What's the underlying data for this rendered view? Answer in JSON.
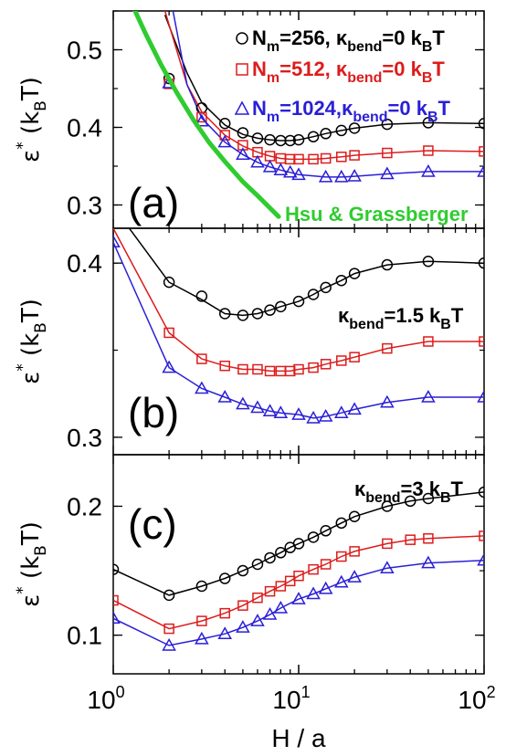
{
  "colors": {
    "black": "#000000",
    "red": "#dd1c1c",
    "blue": "#2a1fd6",
    "green": "#2fcc2f"
  },
  "xaxis": {
    "label": "H / a",
    "ticks": [
      {
        "value": 1,
        "base": "10",
        "exp": "0"
      },
      {
        "value": 10,
        "base": "10",
        "exp": "1"
      },
      {
        "value": 100,
        "base": "10",
        "exp": "2"
      }
    ]
  },
  "chart_data": [
    {
      "type": "line",
      "panel": "(a)",
      "ylabel": "ε* (kBT)",
      "ylabel_parts": {
        "sym": "ε",
        "sup": "*",
        "open": " (k",
        "sub": "B",
        "close": "T)"
      },
      "xscale": "log",
      "xlim": [
        1,
        100
      ],
      "ylim": [
        0.27,
        0.55
      ],
      "yticks": [
        0.3,
        0.4,
        0.5
      ],
      "ytick_labels": [
        "0.3",
        "0.4",
        "0.5"
      ],
      "legend": [
        {
          "series": 0,
          "p1": "N",
          "p1sub": "m",
          "p2": "=256,  ",
          "p3": "κ",
          "p3sub": "bend",
          "p4": "=0 k",
          "p4sub": "B",
          "p5": "T"
        },
        {
          "series": 1,
          "p1": "N",
          "p1sub": "m",
          "p2": "=512,  ",
          "p3": "κ",
          "p3sub": "bend",
          "p4": "=0 k",
          "p4sub": "B",
          "p5": "T"
        },
        {
          "series": 2,
          "p1": "N",
          "p1sub": "m",
          "p2": "=1024,",
          "p3": "κ",
          "p3sub": "bend",
          "p4": "=0 k",
          "p4sub": "B",
          "p5": "T"
        }
      ],
      "annotation": "Hsu & Grassberger",
      "series": [
        {
          "name": "Nm=256, κbend=0 kBT",
          "marker": "circle",
          "color": "#000000",
          "x": [
            2,
            3,
            4,
            5,
            6,
            7,
            8,
            9,
            10,
            12,
            14,
            17,
            20,
            30,
            50,
            100
          ],
          "y": [
            0.463,
            0.425,
            0.405,
            0.393,
            0.386,
            0.384,
            0.383,
            0.383,
            0.384,
            0.388,
            0.392,
            0.396,
            0.399,
            0.404,
            0.406,
            0.405
          ]
        },
        {
          "name": "Nm=512, κbend=0 kBT",
          "marker": "square",
          "color": "#dd1c1c",
          "x": [
            2,
            3,
            4,
            5,
            6,
            7,
            8,
            9,
            10,
            12,
            14,
            17,
            20,
            30,
            50,
            100
          ],
          "y": [
            0.456,
            0.413,
            0.39,
            0.377,
            0.368,
            0.363,
            0.36,
            0.359,
            0.359,
            0.359,
            0.36,
            0.362,
            0.364,
            0.367,
            0.37,
            0.369
          ]
        },
        {
          "name": "Nm=1024, κbend=0 kBT",
          "marker": "triangle",
          "color": "#2a1fd6",
          "x": [
            2,
            3,
            4,
            5,
            6,
            7,
            8,
            9,
            10,
            14,
            17,
            20,
            30,
            50,
            100
          ],
          "y": [
            0.457,
            0.408,
            0.381,
            0.365,
            0.355,
            0.349,
            0.345,
            0.342,
            0.339,
            0.336,
            0.336,
            0.337,
            0.34,
            0.343,
            0.343
          ]
        },
        {
          "name": "Hsu & Grassberger",
          "marker": "none",
          "color": "#2fcc2f",
          "x": [
            1.3,
            1.5,
            1.8,
            2.2,
            2.7,
            3.3,
            4.0,
            5.0,
            6.0,
            7.0,
            7.8
          ],
          "y": [
            0.552,
            0.52,
            0.482,
            0.445,
            0.41,
            0.38,
            0.356,
            0.33,
            0.312,
            0.296,
            0.285
          ]
        }
      ],
      "fits": [
        {
          "color": "#000000",
          "x": [
            1.9,
            2.5,
            3.0,
            4.0,
            5.0,
            6.0,
            7.0,
            8.0,
            9.0,
            10,
            12,
            14,
            17,
            20,
            30,
            50,
            100
          ],
          "y": [
            0.545,
            0.47,
            0.432,
            0.403,
            0.391,
            0.386,
            0.384,
            0.383,
            0.383,
            0.384,
            0.388,
            0.392,
            0.396,
            0.399,
            0.404,
            0.406,
            0.405
          ]
        },
        {
          "color": "#dd1c1c",
          "x": [
            1.9,
            2.5,
            3.0,
            4.0,
            5.0,
            6.0,
            7.0,
            8.0,
            9.0,
            10,
            12,
            14,
            17,
            20,
            30,
            50,
            100
          ],
          "y": [
            0.55,
            0.455,
            0.42,
            0.39,
            0.376,
            0.368,
            0.363,
            0.36,
            0.359,
            0.359,
            0.359,
            0.36,
            0.362,
            0.364,
            0.367,
            0.37,
            0.369
          ]
        },
        {
          "color": "#2a1fd6",
          "x": [
            2.1,
            2.5,
            3.0,
            4.0,
            5.0,
            6.0,
            7.0,
            8.0,
            9.0,
            10,
            14,
            17,
            20,
            30,
            50,
            100
          ],
          "y": [
            0.55,
            0.455,
            0.412,
            0.381,
            0.365,
            0.355,
            0.349,
            0.345,
            0.342,
            0.339,
            0.336,
            0.336,
            0.337,
            0.34,
            0.343,
            0.343
          ]
        }
      ]
    },
    {
      "type": "line",
      "panel": "(b)",
      "ylabel": "ε* (kBT)",
      "ylabel_parts": {
        "sym": "ε",
        "sup": "*",
        "open": " (k",
        "sub": "B",
        "close": "T)"
      },
      "xscale": "log",
      "xlim": [
        1,
        100
      ],
      "ylim": [
        0.29,
        0.42
      ],
      "yticks": [
        0.3,
        0.4
      ],
      "ytick_labels": [
        "0.3",
        "0.4"
      ],
      "text_label": {
        "p1": "κ",
        "p1sub": "bend",
        "p2": "=1.5 k",
        "p2sub": "B",
        "p3": "T"
      },
      "series": [
        {
          "name": "Nm=256, κbend=1.5 kBT",
          "marker": "circle",
          "color": "#000000",
          "x": [
            2,
            3,
            4,
            5,
            6,
            7,
            8,
            10,
            12,
            14,
            17,
            20,
            30,
            50,
            100
          ],
          "y": [
            0.389,
            0.381,
            0.371,
            0.37,
            0.371,
            0.373,
            0.375,
            0.378,
            0.382,
            0.386,
            0.39,
            0.394,
            0.399,
            0.401,
            0.4
          ]
        },
        {
          "name": "Nm=512, κbend=1.5 kBT",
          "marker": "square",
          "color": "#dd1c1c",
          "x": [
            2,
            3,
            4,
            5,
            6,
            7,
            8,
            9,
            10,
            12,
            14,
            17,
            20,
            30,
            50,
            100
          ],
          "y": [
            0.36,
            0.345,
            0.341,
            0.339,
            0.339,
            0.338,
            0.338,
            0.338,
            0.339,
            0.34,
            0.342,
            0.344,
            0.346,
            0.351,
            0.355,
            0.355
          ]
        },
        {
          "name": "Nm=1024, κbend=1.5 kBT",
          "marker": "triangle",
          "color": "#2a1fd6",
          "x": [
            1,
            2,
            3,
            4,
            5,
            6,
            7,
            8,
            10,
            12,
            14,
            17,
            20,
            30,
            50,
            100
          ],
          "y": [
            0.412,
            0.34,
            0.328,
            0.323,
            0.319,
            0.317,
            0.315,
            0.314,
            0.313,
            0.311,
            0.312,
            0.314,
            0.316,
            0.32,
            0.323,
            0.323
          ]
        }
      ],
      "fits": [
        {
          "color": "#000000",
          "x": [
            1.22,
            2,
            3,
            4,
            5,
            6,
            7,
            8,
            10,
            12,
            14,
            17,
            20,
            30,
            50,
            100
          ],
          "y": [
            0.42,
            0.389,
            0.379,
            0.371,
            0.37,
            0.371,
            0.373,
            0.375,
            0.378,
            0.382,
            0.386,
            0.39,
            0.394,
            0.399,
            0.401,
            0.4
          ]
        },
        {
          "color": "#dd1c1c",
          "x": [
            1,
            2,
            3,
            4,
            5,
            6,
            7,
            8,
            9,
            10,
            12,
            14,
            17,
            20,
            30,
            50,
            100
          ],
          "y": [
            0.42,
            0.36,
            0.345,
            0.341,
            0.339,
            0.339,
            0.338,
            0.338,
            0.338,
            0.339,
            0.34,
            0.342,
            0.344,
            0.346,
            0.351,
            0.355,
            0.355
          ]
        },
        {
          "color": "#2a1fd6",
          "x": [
            1,
            2,
            3,
            4,
            5,
            6,
            7,
            8,
            10,
            12,
            14,
            17,
            20,
            30,
            50,
            100
          ],
          "y": [
            0.412,
            0.34,
            0.328,
            0.323,
            0.319,
            0.317,
            0.315,
            0.314,
            0.313,
            0.311,
            0.312,
            0.314,
            0.316,
            0.32,
            0.323,
            0.323
          ]
        }
      ]
    },
    {
      "type": "line",
      "panel": "(c)",
      "ylabel": "ε* (kBT)",
      "ylabel_parts": {
        "sym": "ε",
        "sup": "*",
        "open": " (k",
        "sub": "B",
        "close": "T)"
      },
      "xscale": "log",
      "xlim": [
        1,
        100
      ],
      "ylim": [
        0.07,
        0.24
      ],
      "yticks": [
        0.1,
        0.2
      ],
      "ytick_labels": [
        "0.1",
        "0.2"
      ],
      "text_label": {
        "p1": "κ",
        "p1sub": "bend",
        "p2": "=3 k",
        "p2sub": "B",
        "p3": "T"
      },
      "series": [
        {
          "name": "Nm=256, κbend=3 kBT",
          "marker": "circle",
          "color": "#000000",
          "x": [
            1,
            2,
            3,
            4,
            5,
            6,
            7,
            8,
            9,
            10,
            12,
            14,
            17,
            20,
            30,
            40,
            50,
            100
          ],
          "y": [
            0.151,
            0.131,
            0.138,
            0.144,
            0.15,
            0.155,
            0.16,
            0.164,
            0.168,
            0.171,
            0.176,
            0.181,
            0.187,
            0.192,
            0.2,
            0.204,
            0.206,
            0.211
          ]
        },
        {
          "name": "Nm=512, κbend=3 kBT",
          "marker": "square",
          "color": "#dd1c1c",
          "x": [
            1,
            2,
            3,
            4,
            5,
            6,
            7,
            8,
            9,
            10,
            12,
            14,
            17,
            20,
            30,
            40,
            50,
            100
          ],
          "y": [
            0.127,
            0.105,
            0.111,
            0.117,
            0.123,
            0.129,
            0.134,
            0.138,
            0.142,
            0.146,
            0.151,
            0.155,
            0.161,
            0.165,
            0.171,
            0.174,
            0.175,
            0.177
          ]
        },
        {
          "name": "Nm=1024, κbend=3 kBT",
          "marker": "triangle",
          "color": "#2a1fd6",
          "x": [
            1,
            2,
            3,
            4,
            5,
            6,
            7,
            8,
            10,
            12,
            14,
            17,
            20,
            30,
            50,
            100
          ],
          "y": [
            0.113,
            0.092,
            0.097,
            0.101,
            0.106,
            0.111,
            0.116,
            0.121,
            0.128,
            0.132,
            0.136,
            0.141,
            0.145,
            0.152,
            0.156,
            0.158
          ]
        }
      ],
      "fits": [
        {
          "color": "#000000",
          "x": [
            1,
            2,
            3,
            4,
            5,
            6,
            7,
            8,
            9,
            10,
            12,
            14,
            17,
            20,
            30,
            40,
            50,
            100
          ],
          "y": [
            0.151,
            0.131,
            0.138,
            0.144,
            0.15,
            0.155,
            0.16,
            0.164,
            0.168,
            0.171,
            0.176,
            0.181,
            0.187,
            0.192,
            0.2,
            0.204,
            0.206,
            0.211
          ]
        },
        {
          "color": "#dd1c1c",
          "x": [
            1,
            2,
            3,
            4,
            5,
            6,
            7,
            8,
            9,
            10,
            12,
            14,
            17,
            20,
            30,
            40,
            50,
            100
          ],
          "y": [
            0.127,
            0.105,
            0.111,
            0.117,
            0.123,
            0.129,
            0.134,
            0.138,
            0.142,
            0.146,
            0.151,
            0.155,
            0.161,
            0.165,
            0.171,
            0.174,
            0.175,
            0.177
          ]
        },
        {
          "color": "#2a1fd6",
          "x": [
            1,
            2,
            3,
            4,
            5,
            6,
            7,
            8,
            10,
            12,
            14,
            17,
            20,
            30,
            50,
            100
          ],
          "y": [
            0.113,
            0.092,
            0.097,
            0.101,
            0.106,
            0.111,
            0.116,
            0.121,
            0.128,
            0.132,
            0.136,
            0.141,
            0.145,
            0.152,
            0.156,
            0.158
          ]
        }
      ]
    }
  ]
}
